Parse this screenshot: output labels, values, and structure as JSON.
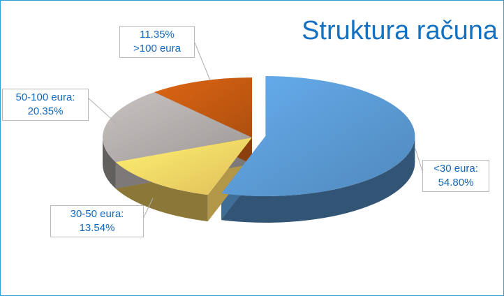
{
  "chart_data": {
    "type": "pie",
    "title": "Struktura računa",
    "style": "3d-exploded",
    "slices": [
      {
        "label": "<30 eura:",
        "value": 54.8,
        "display": "54.80%",
        "color": "#5b9bd5"
      },
      {
        "label": "30-50 eura:",
        "value": 13.54,
        "display": "13.54%",
        "color": "#fdd866"
      },
      {
        "label": "50-100 eura:",
        "value": 20.35,
        "display": "20.35%",
        "color": "#b3adac"
      },
      {
        "label": ">100 eura",
        "value": 11.35,
        "display": "11.35%",
        "color": "#c55a11"
      }
    ]
  }
}
